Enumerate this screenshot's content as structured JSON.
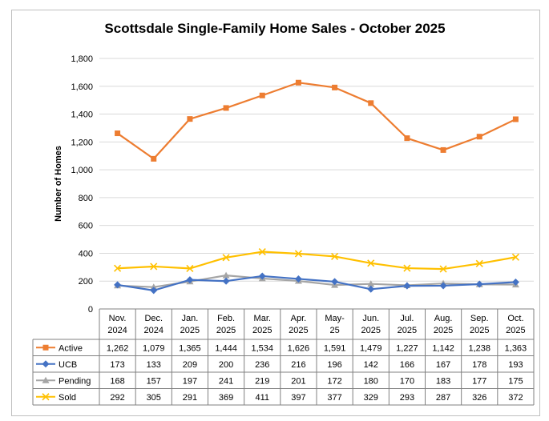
{
  "chart_data": {
    "type": "line",
    "title": "Scottsdale Single-Family Home Sales - October 2025",
    "ylabel": "Number of Homes",
    "xlabel": "",
    "ylim": [
      0,
      1800
    ],
    "yticks": [
      "0",
      "200",
      "400",
      "600",
      "800",
      "1,000",
      "1,200",
      "1,400",
      "1,600",
      "1,800"
    ],
    "grid": true,
    "legend": "table-below",
    "categories": [
      [
        "Nov.",
        "2024"
      ],
      [
        "Dec.",
        "2024"
      ],
      [
        "Jan.",
        "2025"
      ],
      [
        "Feb.",
        "2025"
      ],
      [
        "Mar.",
        "2025"
      ],
      [
        "Apr.",
        "2025"
      ],
      [
        "May-",
        "25"
      ],
      [
        "Jun.",
        "2025"
      ],
      [
        "Jul.",
        "2025"
      ],
      [
        "Aug.",
        "2025"
      ],
      [
        "Sep.",
        "2025"
      ],
      [
        "Oct.",
        "2025"
      ]
    ],
    "series": [
      {
        "name": "Active",
        "color": "#ED7D31",
        "marker": "square",
        "values": [
          1262,
          1079,
          1365,
          1444,
          1534,
          1626,
          1591,
          1479,
          1227,
          1142,
          1238,
          1363
        ],
        "labels": [
          "1,262",
          "1,079",
          "1,365",
          "1,444",
          "1,534",
          "1,626",
          "1,591",
          "1,479",
          "1,227",
          "1,142",
          "1,238",
          "1,363"
        ]
      },
      {
        "name": "UCB",
        "color": "#4472C4",
        "marker": "diamond",
        "values": [
          173,
          133,
          209,
          200,
          236,
          216,
          196,
          142,
          166,
          167,
          178,
          193
        ],
        "labels": [
          "173",
          "133",
          "209",
          "200",
          "236",
          "216",
          "196",
          "142",
          "166",
          "167",
          "178",
          "193"
        ]
      },
      {
        "name": "Pending",
        "color": "#A5A5A5",
        "marker": "triangle",
        "values": [
          168,
          157,
          197,
          241,
          219,
          201,
          172,
          180,
          170,
          183,
          177,
          175
        ],
        "labels": [
          "168",
          "157",
          "197",
          "241",
          "219",
          "201",
          "172",
          "180",
          "170",
          "183",
          "177",
          "175"
        ]
      },
      {
        "name": "Sold",
        "color": "#FFC000",
        "marker": "x",
        "values": [
          292,
          305,
          291,
          369,
          411,
          397,
          377,
          329,
          293,
          287,
          326,
          372
        ],
        "labels": [
          "292",
          "305",
          "291",
          "369",
          "411",
          "397",
          "377",
          "329",
          "293",
          "287",
          "326",
          "372"
        ]
      }
    ]
  }
}
